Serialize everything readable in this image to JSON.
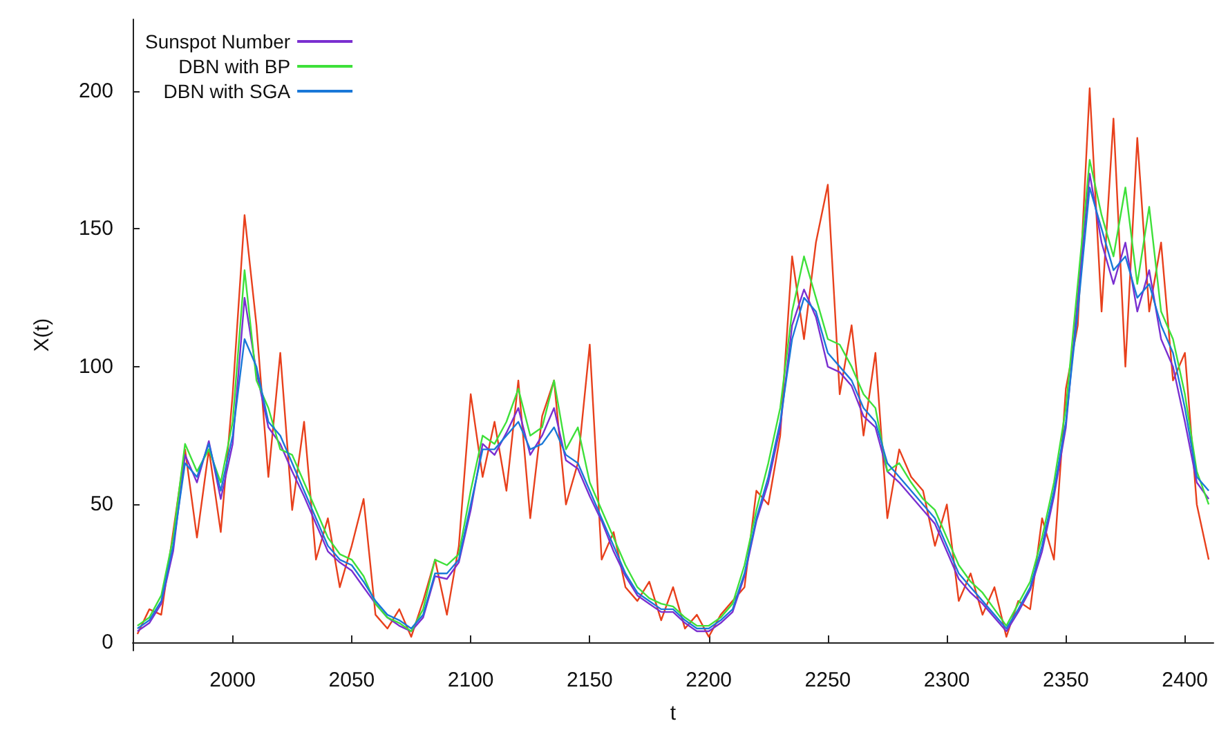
{
  "chart_data": {
    "type": "line",
    "xlabel": "t",
    "ylabel": "X(t)",
    "x": [
      1960,
      1965,
      1970,
      1975,
      1980,
      1985,
      1990,
      1995,
      2000,
      2005,
      2010,
      2015,
      2020,
      2025,
      2030,
      2035,
      2040,
      2045,
      2050,
      2055,
      2060,
      2065,
      2070,
      2075,
      2080,
      2085,
      2090,
      2095,
      2100,
      2105,
      2110,
      2115,
      2120,
      2125,
      2130,
      2135,
      2140,
      2145,
      2150,
      2155,
      2160,
      2165,
      2170,
      2175,
      2180,
      2185,
      2190,
      2195,
      2200,
      2205,
      2210,
      2215,
      2220,
      2225,
      2230,
      2235,
      2240,
      2245,
      2250,
      2255,
      2260,
      2265,
      2270,
      2275,
      2280,
      2285,
      2290,
      2295,
      2300,
      2305,
      2310,
      2315,
      2320,
      2325,
      2330,
      2335,
      2340,
      2345,
      2350,
      2355,
      2360,
      2365,
      2370,
      2375,
      2380,
      2385,
      2390,
      2395,
      2400,
      2405,
      2410
    ],
    "series": [
      {
        "color": "#e8401c",
        "values": [
          3,
          12,
          10,
          40,
          70,
          38,
          70,
          40,
          90,
          155,
          115,
          60,
          105,
          48,
          80,
          30,
          45,
          20,
          35,
          52,
          10,
          5,
          12,
          2,
          15,
          30,
          10,
          35,
          90,
          60,
          80,
          55,
          95,
          45,
          82,
          95,
          50,
          65,
          108,
          30,
          40,
          20,
          15,
          22,
          8,
          20,
          5,
          10,
          2,
          10,
          15,
          20,
          55,
          50,
          75,
          140,
          110,
          145,
          166,
          90,
          115,
          75,
          105,
          45,
          70,
          60,
          55,
          35,
          50,
          15,
          25,
          10,
          20,
          2,
          15,
          12,
          45,
          30,
          92,
          115,
          201,
          120,
          190,
          100,
          183,
          120,
          145,
          95,
          105,
          50,
          30
        ]
      },
      {
        "name": "Sunspot Number",
        "color": "#7a2fd0",
        "values": [
          4,
          7,
          14,
          33,
          68,
          58,
          73,
          52,
          72,
          125,
          98,
          78,
          72,
          62,
          53,
          43,
          33,
          29,
          26,
          20,
          14,
          9,
          6,
          4,
          9,
          24,
          23,
          29,
          48,
          72,
          68,
          76,
          85,
          68,
          75,
          85,
          66,
          63,
          53,
          44,
          33,
          24,
          17,
          14,
          11,
          11,
          7,
          4,
          4,
          7,
          11,
          24,
          44,
          58,
          78,
          115,
          128,
          118,
          100,
          98,
          93,
          82,
          78,
          62,
          58,
          53,
          48,
          43,
          33,
          23,
          18,
          14,
          9,
          4,
          11,
          19,
          33,
          53,
          78,
          125,
          170,
          145,
          130,
          145,
          120,
          135,
          110,
          100,
          80,
          58,
          52
        ]
      },
      {
        "name": "DBN with BP",
        "color": "#3ee03a",
        "values": [
          6,
          9,
          17,
          38,
          72,
          62,
          70,
          58,
          80,
          135,
          95,
          85,
          70,
          68,
          58,
          48,
          38,
          32,
          30,
          24,
          14,
          9,
          7,
          4,
          12,
          30,
          28,
          32,
          55,
          75,
          72,
          80,
          92,
          75,
          78,
          95,
          70,
          78,
          58,
          48,
          38,
          28,
          20,
          16,
          14,
          13,
          9,
          6,
          6,
          9,
          14,
          28,
          48,
          65,
          85,
          120,
          140,
          125,
          110,
          108,
          100,
          90,
          85,
          62,
          65,
          58,
          52,
          48,
          38,
          28,
          22,
          18,
          12,
          6,
          14,
          22,
          38,
          58,
          85,
          130,
          175,
          155,
          140,
          165,
          130,
          158,
          120,
          110,
          90,
          62,
          50
        ]
      },
      {
        "name": "DBN with SGA",
        "color": "#1a78d8",
        "values": [
          5,
          8,
          15,
          35,
          65,
          60,
          72,
          55,
          75,
          110,
          100,
          80,
          75,
          65,
          55,
          45,
          35,
          30,
          28,
          22,
          15,
          10,
          8,
          5,
          10,
          25,
          25,
          30,
          50,
          70,
          70,
          75,
          80,
          70,
          72,
          78,
          68,
          65,
          55,
          45,
          35,
          25,
          18,
          15,
          12,
          12,
          8,
          5,
          5,
          8,
          12,
          25,
          45,
          60,
          80,
          110,
          125,
          120,
          105,
          100,
          95,
          85,
          80,
          65,
          60,
          55,
          50,
          45,
          35,
          25,
          20,
          15,
          10,
          5,
          12,
          20,
          35,
          55,
          80,
          120,
          165,
          150,
          135,
          140,
          125,
          130,
          115,
          105,
          85,
          60,
          55
        ]
      }
    ],
    "xlim": [
      1958,
      2412
    ],
    "xticks": [
      2000,
      2050,
      2100,
      2150,
      2200,
      2250,
      2300,
      2350,
      2400
    ],
    "ylim": [
      -3,
      226
    ],
    "yticks": [
      0,
      50,
      100,
      150,
      200
    ],
    "grid": false,
    "legend": "top left",
    "marker": "none",
    "line_style": "solid"
  }
}
